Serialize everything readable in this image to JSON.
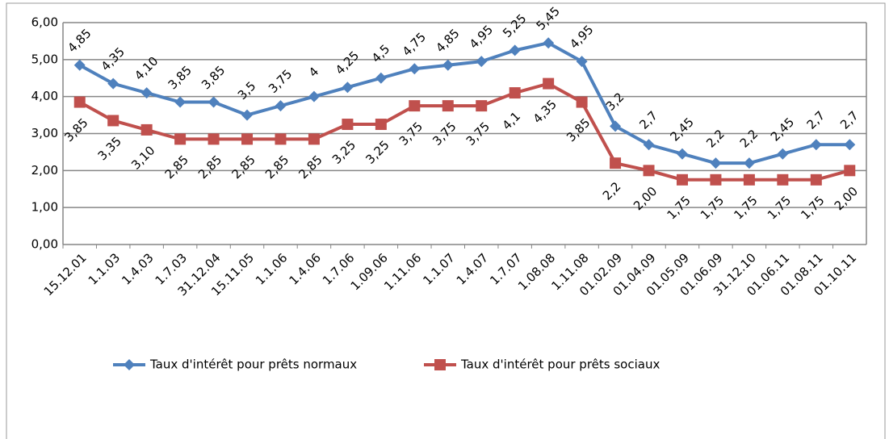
{
  "chart_data": {
    "type": "line",
    "categories": [
      "15.12.01",
      "1.1.03",
      "1.4.03",
      "1.7.03",
      "31.12.04",
      "15.11.05",
      "1.1.06",
      "1.4.06",
      "1.7.06",
      "1.09.06",
      "1.11.06",
      "1.1.07",
      "1.4.07",
      "1.7.07",
      "1.08.08",
      "1.11.08",
      "01.02.09",
      "01.04.09",
      "01.05.09",
      "01.06.09",
      "31.12.10",
      "01.06.11",
      "01.08.11",
      "01.10.11"
    ],
    "series": [
      {
        "name": "Taux d'intérêt pour prêts normaux",
        "color": "#4f81bd",
        "marker": "diamond",
        "values": [
          4.85,
          4.35,
          4.1,
          3.85,
          3.85,
          3.5,
          3.75,
          4,
          4.25,
          4.5,
          4.75,
          4.85,
          4.95,
          5.25,
          5.45,
          4.95,
          3.2,
          2.7,
          2.45,
          2.2,
          2.2,
          2.45,
          2.7,
          2.7
        ],
        "value_labels": [
          "4,85",
          "4,35",
          "4,10",
          "3,85",
          "3,85",
          "3,5",
          "3,75",
          "4",
          "4,25",
          "4,5",
          "4,75",
          "4,85",
          "4,95",
          "5,25",
          "5,45",
          "4,95",
          "3,2",
          "2,7",
          "2,45",
          "2,2",
          "2,2",
          "2,45",
          "2,7",
          "2,7"
        ]
      },
      {
        "name": "Taux d'intérêt pour prêts sociaux",
        "color": "#c0504d",
        "marker": "square",
        "values": [
          3.85,
          3.35,
          3.1,
          2.85,
          2.85,
          2.85,
          2.85,
          2.85,
          3.25,
          3.25,
          3.75,
          3.75,
          3.75,
          4.1,
          4.35,
          3.85,
          2.2,
          2.0,
          1.75,
          1.75,
          1.75,
          1.75,
          1.75,
          2.0
        ],
        "value_labels": [
          "3,85",
          "3,35",
          "3,10",
          "2,85",
          "2,85",
          "2,85",
          "2,85",
          "2,85",
          "3,25",
          "3,25",
          "3,75",
          "3,75",
          "3,75",
          "4,1",
          "4,35",
          "3,85",
          "2,2",
          "2,00",
          "1,75",
          "1,75",
          "1,75",
          "1,75",
          "1,75",
          "2,00"
        ]
      }
    ],
    "ylim": [
      0,
      6
    ],
    "yticks": [
      {
        "value": 0,
        "label": "0,00"
      },
      {
        "value": 1,
        "label": "1,00"
      },
      {
        "value": 2,
        "label": "2,00"
      },
      {
        "value": 3,
        "label": "3,00"
      },
      {
        "value": 4,
        "label": "4,00"
      },
      {
        "value": 5,
        "label": "5,00"
      },
      {
        "value": 6,
        "label": "6,00"
      }
    ],
    "grid": true,
    "legend": "bottom"
  }
}
